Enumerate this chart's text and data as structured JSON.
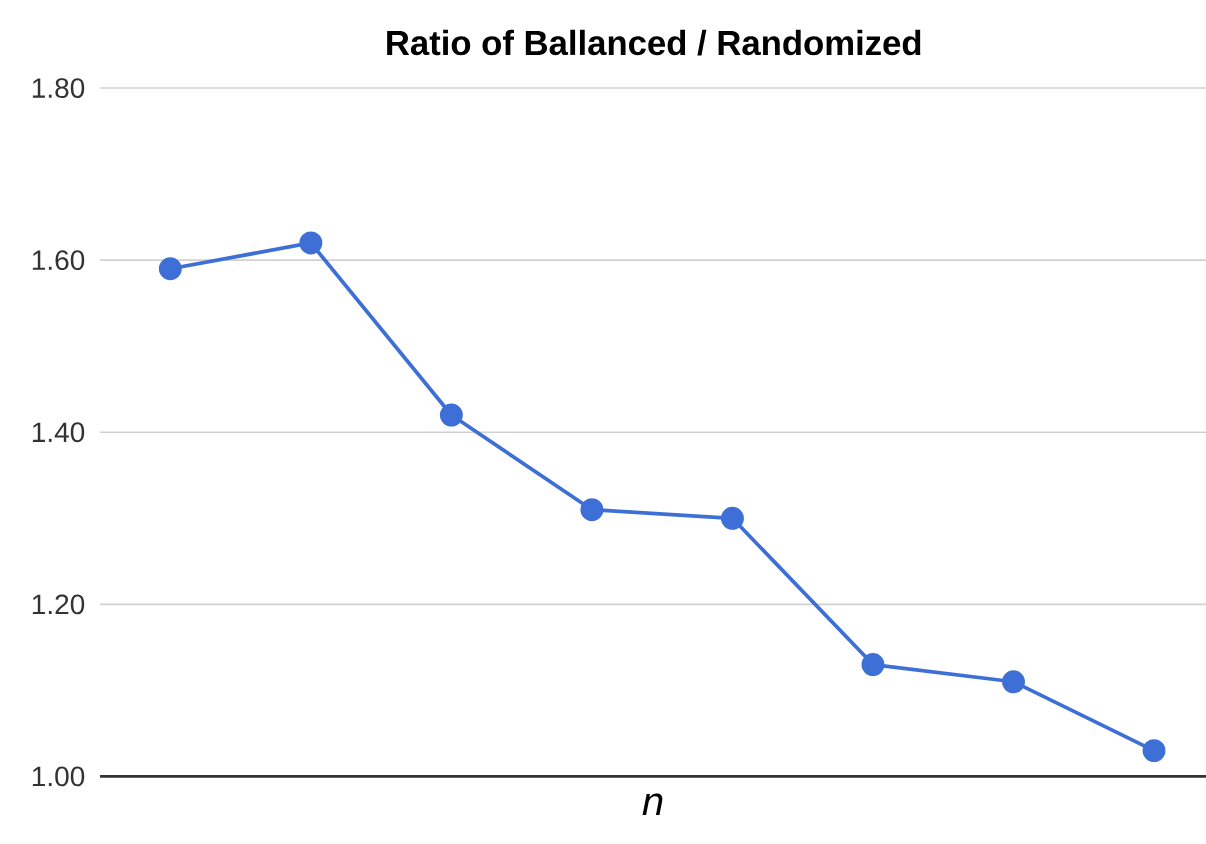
{
  "chart_data": {
    "type": "line",
    "title": "Ratio of Ballanced / Randomized",
    "xlabel": "n",
    "categories": [
      null,
      null,
      null,
      null,
      null,
      null,
      null,
      null
    ],
    "series": [
      {
        "color": "#3d6fd6",
        "values": [
          1.59,
          1.62,
          1.42,
          1.31,
          1.3,
          1.13,
          1.11,
          1.03
        ]
      }
    ],
    "ylim": [
      1.0,
      1.8
    ],
    "yticks": [
      {
        "value": 1.0,
        "label": "1.00"
      },
      {
        "value": 1.2,
        "label": "1.20"
      },
      {
        "value": 1.4,
        "label": "1.40"
      },
      {
        "value": 1.6,
        "label": "1.60"
      },
      {
        "value": 1.8,
        "label": "1.80"
      }
    ],
    "grid": "y",
    "marker": "circle",
    "line_style": "solid"
  }
}
